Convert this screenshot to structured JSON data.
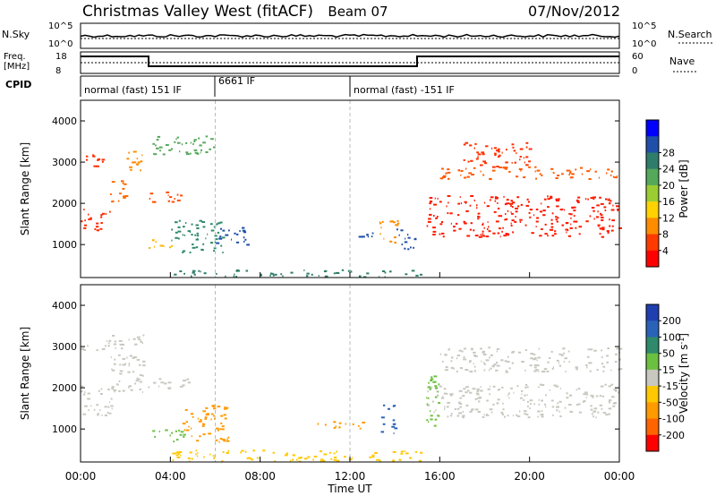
{
  "header": {
    "title": "Christmas Valley West (fitACF)",
    "beam": "Beam 07",
    "date": "07/Nov/2012"
  },
  "top_panels": {
    "nsky_label": "N.Sky",
    "left_tick_hi": "10^5",
    "left_tick_lo": "10^0",
    "right_tick_hi": "10^5",
    "right_tick_lo": "10^0",
    "nsearch_label": "N.Search",
    "freq_label_1": "Freq.",
    "freq_label_2": "[MHz]",
    "freq_tick_hi": "18",
    "freq_tick_lo": "8",
    "nave_tick_hi": "60",
    "nave_tick_lo": "0",
    "nave_label": "Nave",
    "cpid_label": "CPID",
    "cpid_segments": [
      {
        "label": "normal (fast) 151 IF",
        "start_hour": 0,
        "end_hour": 6
      },
      {
        "label": "6661 IF",
        "start_hour": 6,
        "end_hour": 12
      },
      {
        "label": "normal (fast) -151 IF",
        "start_hour": 12,
        "end_hour": 24
      }
    ]
  },
  "chart_data": [
    {
      "type": "heatmap",
      "panel": "power",
      "ylabel": "Slant Range [km]",
      "yticks": [
        1000,
        2000,
        3000,
        4000
      ],
      "ylim": [
        200,
        4500
      ],
      "xlim": [
        0,
        24
      ],
      "colorbar": {
        "label": "Power [dB]",
        "ticks": [
          "4",
          "8",
          "12",
          "16",
          "20",
          "24",
          "28"
        ],
        "colors": [
          "#0000ff",
          "#1f4fa8",
          "#2e7d6a",
          "#55a85a",
          "#9acd32",
          "#ffd200",
          "#ff8c00",
          "#ff3a00",
          "#ff0000"
        ]
      },
      "regions": [
        {
          "x0": 0.0,
          "x1": 1.3,
          "y0": 1350,
          "y1": 1950,
          "color": "#ff2a00"
        },
        {
          "x0": 0.2,
          "x1": 1.4,
          "y0": 2900,
          "y1": 3200,
          "color": "#ff3000"
        },
        {
          "x0": 1.3,
          "x1": 2.0,
          "y0": 2000,
          "y1": 2700,
          "color": "#ff6a00"
        },
        {
          "x0": 2.0,
          "x1": 2.8,
          "y0": 2700,
          "y1": 3300,
          "color": "#ff8c00"
        },
        {
          "x0": 3.0,
          "x1": 4.8,
          "y0": 2050,
          "y1": 2300,
          "color": "#ff4a00"
        },
        {
          "x0": 3.0,
          "x1": 4.2,
          "y0": 900,
          "y1": 1150,
          "color": "#ffb300"
        },
        {
          "x0": 4.0,
          "x1": 6.4,
          "y0": 800,
          "y1": 1600,
          "color": "#2e8a6a"
        },
        {
          "x0": 6.0,
          "x1": 7.4,
          "y0": 1000,
          "y1": 1500,
          "color": "#1f4fa8"
        },
        {
          "x0": 3.2,
          "x1": 6.0,
          "y0": 3200,
          "y1": 3700,
          "color": "#55a85a"
        },
        {
          "x0": 12.2,
          "x1": 13.3,
          "y0": 1150,
          "y1": 1300,
          "color": "#1f4fa8"
        },
        {
          "x0": 13.3,
          "x1": 14.2,
          "y0": 1000,
          "y1": 1600,
          "color": "#ff8c00"
        },
        {
          "x0": 14.0,
          "x1": 15.0,
          "y0": 900,
          "y1": 1400,
          "color": "#1f4fa8"
        },
        {
          "x0": 15.4,
          "x1": 24.0,
          "y0": 1200,
          "y1": 2200,
          "color": "#ff1a00"
        },
        {
          "x0": 16.0,
          "x1": 24.0,
          "y0": 2600,
          "y1": 2900,
          "color": "#ff5a00"
        },
        {
          "x0": 17.0,
          "x1": 20.0,
          "y0": 2900,
          "y1": 3500,
          "color": "#ff3000"
        },
        {
          "x0": 4.0,
          "x1": 15.2,
          "y0": 230,
          "y1": 400,
          "color": "#2e7d6a"
        }
      ]
    },
    {
      "type": "heatmap",
      "panel": "velocity",
      "ylabel": "Slant Range [km]",
      "xlabel": "Time UT",
      "xticks": [
        "00:00",
        "04:00",
        "08:00",
        "12:00",
        "16:00",
        "20:00",
        "00:00"
      ],
      "yticks": [
        1000,
        2000,
        3000,
        4000
      ],
      "ylim": [
        200,
        4500
      ],
      "xlim": [
        0,
        24
      ],
      "colorbar": {
        "label": "Velocity [m s^-1]",
        "ticks": [
          "200",
          "100",
          "50",
          "15",
          "-15",
          "-50",
          "-100",
          "-200"
        ],
        "colors": [
          "#1f3fb0",
          "#2a62b8",
          "#2e8a6a",
          "#6cc040",
          "#c8c8c0",
          "#ffc800",
          "#ff9a00",
          "#ff6400",
          "#ff0000"
        ]
      },
      "regions": [
        {
          "x0": 0.0,
          "x1": 1.4,
          "y0": 1350,
          "y1": 2100,
          "color": "#c8c8c0"
        },
        {
          "x0": 0.0,
          "x1": 1.3,
          "y0": 2900,
          "y1": 3200,
          "color": "#c8c8c0"
        },
        {
          "x0": 1.3,
          "x1": 2.8,
          "y0": 1900,
          "y1": 3300,
          "color": "#c8c8c0"
        },
        {
          "x0": 3.0,
          "x1": 4.8,
          "y0": 2000,
          "y1": 2300,
          "color": "#c8c8c0"
        },
        {
          "x0": 3.0,
          "x1": 4.6,
          "y0": 700,
          "y1": 1000,
          "color": "#6cc040"
        },
        {
          "x0": 4.5,
          "x1": 6.6,
          "y0": 700,
          "y1": 1600,
          "color": "#ff9a00"
        },
        {
          "x0": 10.5,
          "x1": 12.6,
          "y0": 1000,
          "y1": 1200,
          "color": "#ff9a00"
        },
        {
          "x0": 13.3,
          "x1": 14.0,
          "y0": 900,
          "y1": 1600,
          "color": "#2a62b8"
        },
        {
          "x0": 15.4,
          "x1": 24.0,
          "y0": 1300,
          "y1": 2100,
          "color": "#c8c8c0"
        },
        {
          "x0": 16.0,
          "x1": 24.0,
          "y0": 2400,
          "y1": 3000,
          "color": "#c8c8c0"
        },
        {
          "x0": 15.3,
          "x1": 16.0,
          "y0": 1000,
          "y1": 2300,
          "color": "#6cc040"
        },
        {
          "x0": 4.0,
          "x1": 15.2,
          "y0": 230,
          "y1": 500,
          "color": "#ffc800"
        }
      ]
    }
  ]
}
